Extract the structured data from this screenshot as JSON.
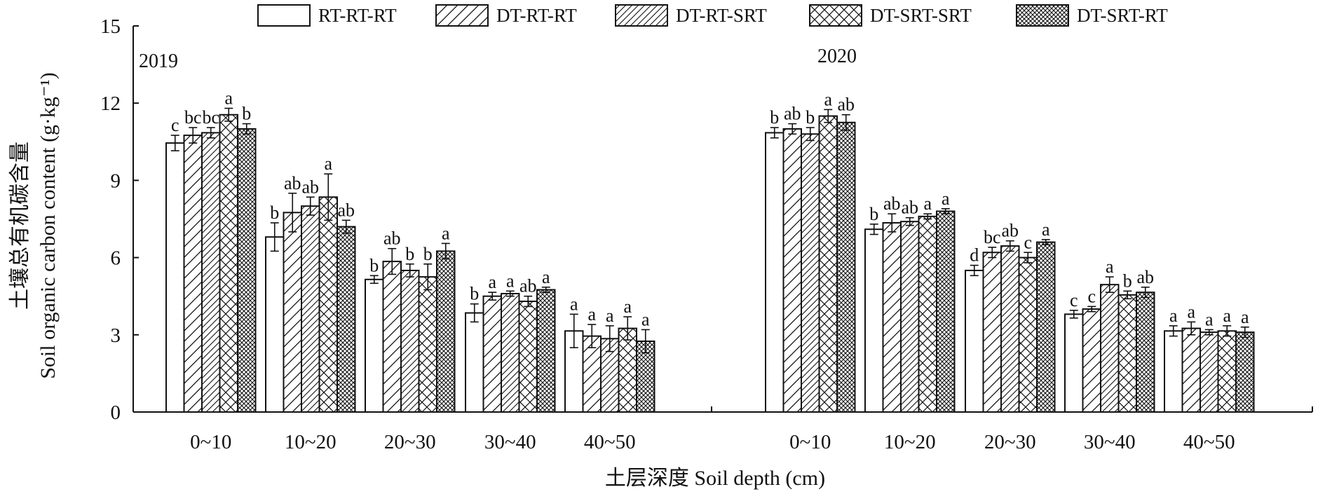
{
  "chart_data": {
    "type": "bar",
    "title": "",
    "ylabel_lines": [
      "土壤总有机碳含量",
      "Soil organic carbon content (g·kg⁻¹)"
    ],
    "xlabel": "土层深度 Soil depth (cm)",
    "ylim": [
      0,
      15
    ],
    "yticks": [
      0,
      3,
      6,
      9,
      12,
      15
    ],
    "legend_position": "top",
    "series_names": [
      "RT-RT-RT",
      "DT-RT-RT",
      "DT-RT-SRT",
      "DT-SRT-SRT",
      "DT-SRT-RT"
    ],
    "series_patterns": [
      "none",
      "diagonal-wide",
      "diagonal-fine",
      "crosshatch",
      "dense-crosshatch"
    ],
    "groups": [
      {
        "year": "2019",
        "categories": [
          "0~10",
          "10~20",
          "20~30",
          "30~40",
          "40~50"
        ],
        "values": [
          [
            10.45,
            10.75,
            10.85,
            11.55,
            11.0
          ],
          [
            6.8,
            7.75,
            8.0,
            8.35,
            7.2
          ],
          [
            5.15,
            5.85,
            5.5,
            5.25,
            6.25
          ],
          [
            3.85,
            4.5,
            4.6,
            4.3,
            4.75
          ],
          [
            3.15,
            2.95,
            2.85,
            3.25,
            2.75
          ]
        ],
        "errors": [
          [
            0.3,
            0.3,
            0.2,
            0.25,
            0.2
          ],
          [
            0.55,
            0.75,
            0.35,
            0.9,
            0.25
          ],
          [
            0.15,
            0.5,
            0.25,
            0.5,
            0.3
          ],
          [
            0.35,
            0.15,
            0.1,
            0.2,
            0.1
          ],
          [
            0.65,
            0.45,
            0.5,
            0.45,
            0.45
          ]
        ],
        "labels": [
          [
            "c",
            "bc",
            "bc",
            "a",
            "b"
          ],
          [
            "b",
            "ab",
            "ab",
            "a",
            "ab"
          ],
          [
            "b",
            "ab",
            "b",
            "b",
            "a"
          ],
          [
            "b",
            "a",
            "a",
            "ab",
            "a"
          ],
          [
            "a",
            "a",
            "a",
            "a",
            "a"
          ]
        ]
      },
      {
        "year": "2020",
        "categories": [
          "0~10",
          "10~20",
          "20~30",
          "30~40",
          "40~50"
        ],
        "values": [
          [
            10.85,
            11.0,
            10.8,
            11.5,
            11.25
          ],
          [
            7.1,
            7.35,
            7.4,
            7.6,
            7.8
          ],
          [
            5.5,
            6.2,
            6.45,
            6.0,
            6.6
          ],
          [
            3.8,
            4.0,
            4.95,
            4.55,
            4.65
          ],
          [
            3.15,
            3.25,
            3.1,
            3.15,
            3.1
          ]
        ],
        "errors": [
          [
            0.2,
            0.2,
            0.25,
            0.25,
            0.3
          ],
          [
            0.2,
            0.35,
            0.15,
            0.1,
            0.1
          ],
          [
            0.2,
            0.2,
            0.2,
            0.2,
            0.1
          ],
          [
            0.15,
            0.1,
            0.3,
            0.15,
            0.2
          ],
          [
            0.2,
            0.25,
            0.1,
            0.2,
            0.2
          ]
        ],
        "labels": [
          [
            "b",
            "ab",
            "b",
            "a",
            "ab"
          ],
          [
            "b",
            "ab",
            "ab",
            "a",
            "a"
          ],
          [
            "d",
            "bc",
            "ab",
            "c",
            "a"
          ],
          [
            "c",
            "c",
            "a",
            "b",
            "ab"
          ],
          [
            "a",
            "a",
            "a",
            "a",
            "a"
          ]
        ]
      }
    ]
  }
}
